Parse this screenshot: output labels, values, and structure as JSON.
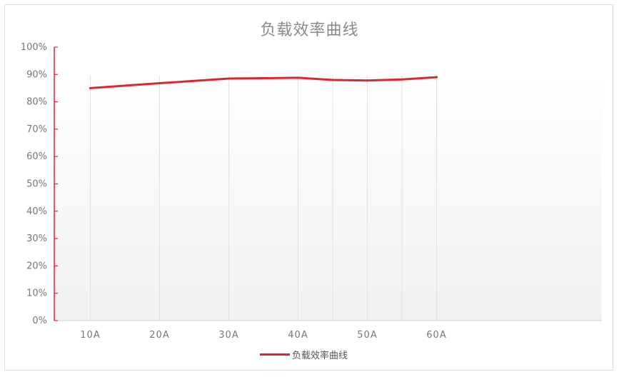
{
  "chart_data": {
    "type": "line",
    "title": "负载效率曲线",
    "xlabel": "",
    "ylabel": "",
    "yticks": [
      "0%",
      "10%",
      "20%",
      "30%",
      "40%",
      "50%",
      "60%",
      "70%",
      "80%",
      "90%",
      "100%"
    ],
    "ylim": [
      0,
      100
    ],
    "x_positions": [
      10,
      20,
      30,
      40,
      45,
      50,
      55,
      60
    ],
    "x_tick_labels": [
      {
        "value": 10,
        "label": "10A"
      },
      {
        "value": 20,
        "label": "20A"
      },
      {
        "value": 30,
        "label": "30A"
      },
      {
        "value": 40,
        "label": "40A"
      },
      {
        "value": 50,
        "label": "50A"
      },
      {
        "value": 60,
        "label": "60A"
      }
    ],
    "xlim": [
      5,
      62.5
    ],
    "grid": "vertical",
    "legend_position": "bottom-center",
    "series": [
      {
        "name": "负载效率曲线",
        "x": [
          10,
          20,
          30,
          40,
          45,
          50,
          55,
          60
        ],
        "values": [
          85,
          86.8,
          88.5,
          88.8,
          88.0,
          87.8,
          88.2,
          89.0
        ],
        "color": "#d9282f"
      }
    ]
  },
  "legend": {
    "label": "负载效率曲线"
  },
  "colors": {
    "line": "#d9282f",
    "axis": "#d9282f",
    "grid": "#e2e2e2",
    "plot_bg_top": "#ffffff",
    "plot_bg_bottom": "#f1f1f1"
  }
}
